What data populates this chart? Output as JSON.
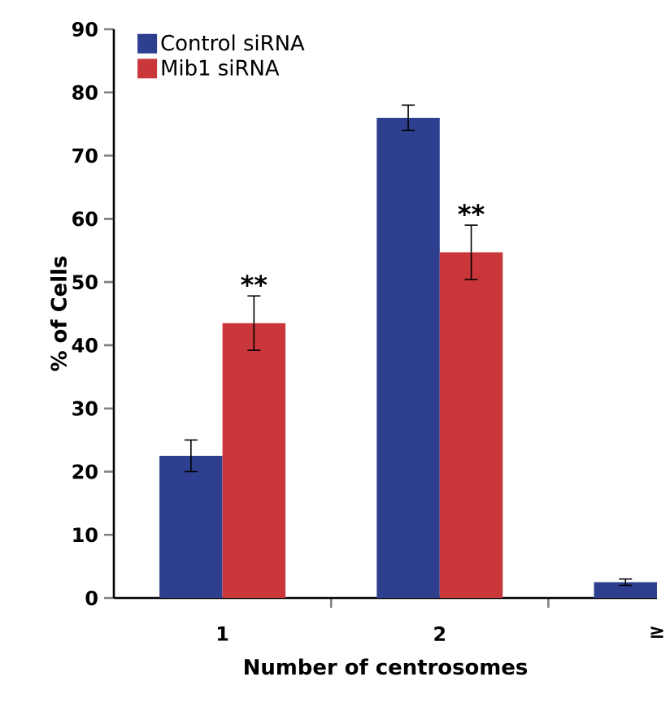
{
  "chart_data": {
    "type": "bar",
    "xlabel": "Number of centrosomes",
    "ylabel": "% of Cells",
    "categories": [
      "1",
      "2",
      "≥"
    ],
    "series": [
      {
        "name": "Control siRNA",
        "color": "#2e3f8f",
        "values": [
          22.5,
          76,
          2.5
        ],
        "errors": [
          2.5,
          2,
          0.5
        ]
      },
      {
        "name": "Mib1 siRNA",
        "color": "#c9373a",
        "values": [
          43.5,
          54.7,
          null
        ],
        "errors": [
          4.3,
          4.3,
          null
        ]
      }
    ],
    "ylim": [
      0,
      90
    ],
    "yticks": [
      0,
      10,
      20,
      30,
      40,
      50,
      60,
      70,
      80,
      90
    ],
    "legend": "top left",
    "annotations": [
      {
        "text": "**",
        "x": "1",
        "y": 43.5
      },
      {
        "text": "**",
        "x": "2",
        "y": 54.7
      }
    ]
  }
}
